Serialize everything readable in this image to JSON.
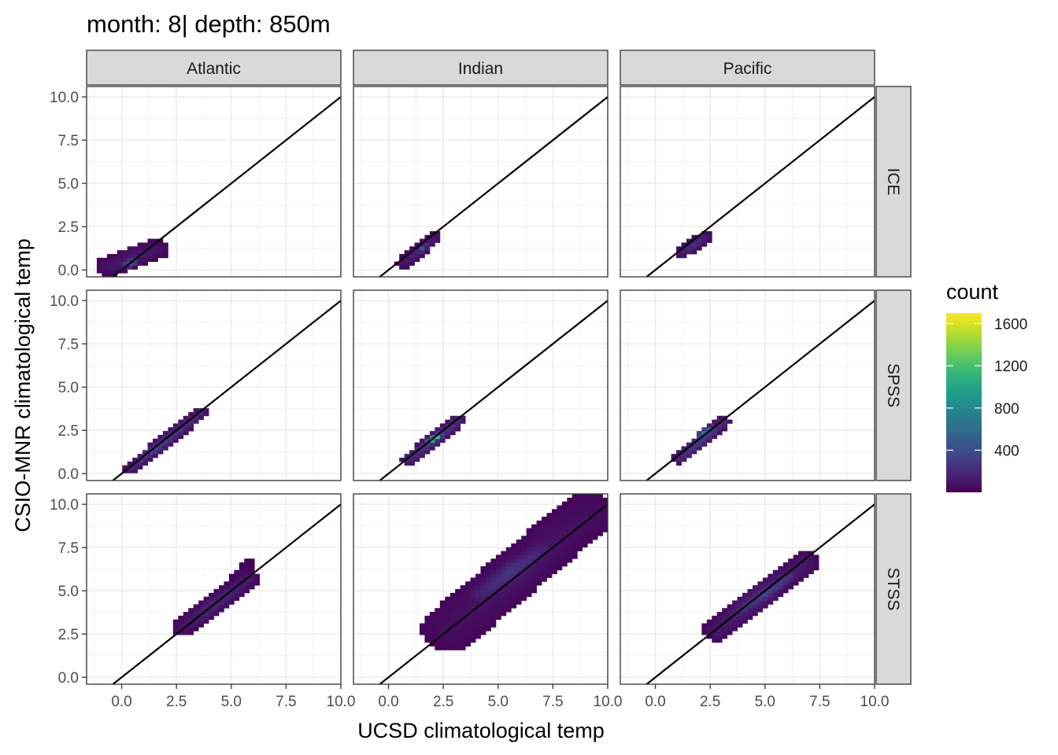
{
  "chart_data": {
    "type": "heatmap",
    "title": "month: 8| depth: 850m",
    "xlabel": "UCSD climatological temp",
    "ylabel": "CSIO-MNR climatological temp",
    "xlim": [
      -1.6,
      10.0
    ],
    "ylim": [
      -0.4,
      10.6
    ],
    "x_ticks": [
      0.0,
      2.5,
      5.0,
      7.5,
      10.0
    ],
    "y_ticks": [
      0.0,
      2.5,
      5.0,
      7.5,
      10.0
    ],
    "x_tick_labels": [
      "0.0",
      "2.5",
      "5.0",
      "7.5",
      "10.0"
    ],
    "y_tick_labels": [
      "0.0",
      "2.5",
      "5.0",
      "7.5",
      "10.0"
    ],
    "grid": true,
    "identity_line": true,
    "facet_columns": [
      "Atlantic",
      "Indian",
      "Pacific"
    ],
    "facet_rows": [
      "ICE",
      "SPSS",
      "STSS"
    ],
    "legend": {
      "title": "count",
      "position": "right",
      "min": 1,
      "max": 1700,
      "breaks": [
        400,
        800,
        1200,
        1600
      ],
      "break_labels": [
        "400",
        "800",
        "1200",
        "1600"
      ],
      "colors": [
        "#440154",
        "#482878",
        "#3e4a89",
        "#31688e",
        "#26828e",
        "#1f9e89",
        "#35b779",
        "#6ece58",
        "#b5de2b",
        "#fde725"
      ]
    },
    "panels": [
      {
        "col": "Atlantic",
        "row": "ICE",
        "blobs": [
          {
            "x0": -0.6,
            "y0": 0.2,
            "x1": 1.6,
            "y1": 1.2,
            "width": 0.6,
            "peak": 150
          },
          {
            "x0": 0.2,
            "y0": 0.3,
            "x1": 0.6,
            "y1": 0.5,
            "width": 0.25,
            "peak": 600
          }
        ]
      },
      {
        "col": "Indian",
        "row": "ICE",
        "blobs": [
          {
            "x0": 0.7,
            "y0": 0.4,
            "x1": 2.1,
            "y1": 1.9,
            "width": 0.35,
            "peak": 200
          },
          {
            "x0": 1.4,
            "y0": 1.1,
            "x1": 1.7,
            "y1": 1.4,
            "width": 0.2,
            "peak": 500
          }
        ]
      },
      {
        "col": "Pacific",
        "row": "ICE",
        "blobs": [
          {
            "x0": 1.2,
            "y0": 1.0,
            "x1": 2.3,
            "y1": 1.9,
            "width": 0.35,
            "peak": 250
          }
        ]
      },
      {
        "col": "Atlantic",
        "row": "SPSS",
        "blobs": [
          {
            "x0": 0.4,
            "y0": 0.3,
            "x1": 3.6,
            "y1": 3.5,
            "width": 0.35,
            "peak": 300
          },
          {
            "x0": 0.8,
            "y0": 0.8,
            "x1": 2.2,
            "y1": 2.0,
            "width": 0.2,
            "peak": 450
          }
        ]
      },
      {
        "col": "Indian",
        "row": "SPSS",
        "blobs": [
          {
            "x0": 0.9,
            "y0": 0.8,
            "x1": 3.2,
            "y1": 3.1,
            "width": 0.35,
            "peak": 350
          },
          {
            "x0": 1.9,
            "y0": 1.9,
            "x1": 2.3,
            "y1": 2.2,
            "width": 0.18,
            "peak": 1650
          }
        ]
      },
      {
        "col": "Pacific",
        "row": "SPSS",
        "blobs": [
          {
            "x0": 1.1,
            "y0": 0.9,
            "x1": 3.1,
            "y1": 3.0,
            "width": 0.35,
            "peak": 350
          },
          {
            "x0": 2.0,
            "y0": 2.2,
            "x1": 2.5,
            "y1": 2.6,
            "width": 0.2,
            "peak": 800
          }
        ]
      },
      {
        "col": "Atlantic",
        "row": "STSS",
        "blobs": [
          {
            "x0": 2.8,
            "y0": 2.9,
            "x1": 5.8,
            "y1": 5.7,
            "width": 0.5,
            "peak": 200
          },
          {
            "x0": 5.1,
            "y0": 5.6,
            "x1": 5.8,
            "y1": 6.5,
            "width": 0.3,
            "peak": 60
          }
        ]
      },
      {
        "col": "Indian",
        "row": "STSS",
        "blobs": [
          {
            "x0": 2.8,
            "y0": 2.8,
            "x1": 9.0,
            "y1": 9.4,
            "width": 1.3,
            "peak": 120
          },
          {
            "x0": 4.2,
            "y0": 4.8,
            "x1": 7.0,
            "y1": 7.4,
            "width": 0.6,
            "peak": 300
          }
        ]
      },
      {
        "col": "Pacific",
        "row": "STSS",
        "blobs": [
          {
            "x0": 2.8,
            "y0": 2.8,
            "x1": 6.8,
            "y1": 6.6,
            "width": 0.7,
            "peak": 200
          },
          {
            "x0": 3.8,
            "y0": 3.8,
            "x1": 6.2,
            "y1": 5.9,
            "width": 0.35,
            "peak": 400
          }
        ]
      }
    ]
  }
}
